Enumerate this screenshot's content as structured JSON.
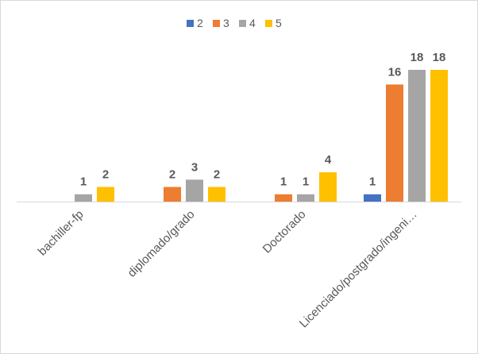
{
  "chart_data": {
    "type": "bar",
    "categories": [
      "bachiller-fp",
      "diplomado/grado",
      "Doctorado",
      "Licenciado/postgrado/ingeni…"
    ],
    "series": [
      {
        "name": "2",
        "color": "#4472c4",
        "values": [
          null,
          null,
          null,
          1
        ]
      },
      {
        "name": "3",
        "color": "#ed7d31",
        "values": [
          null,
          2,
          1,
          16
        ]
      },
      {
        "name": "4",
        "color": "#a5a5a5",
        "values": [
          1,
          3,
          1,
          18
        ]
      },
      {
        "name": "5",
        "color": "#ffc000",
        "values": [
          2,
          2,
          4,
          18
        ]
      }
    ],
    "legend": "top"
  }
}
